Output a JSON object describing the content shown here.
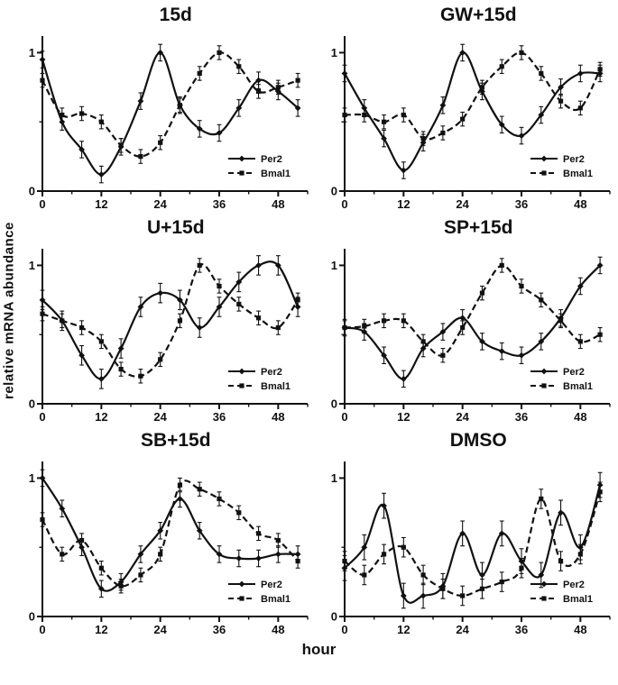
{
  "figure": {
    "ylabel": "relative mRNA abundance",
    "xlabel": "hour",
    "ink_color": "#111111",
    "background_color": "#ffffff"
  },
  "chart_data": [
    {
      "type": "line",
      "title": "15d",
      "x": [
        0,
        4,
        8,
        12,
        16,
        20,
        24,
        28,
        32,
        36,
        40,
        44,
        48,
        52
      ],
      "xticks": [
        0,
        12,
        24,
        36,
        48
      ],
      "yticks": [
        0,
        1
      ],
      "xlim": [
        0,
        54
      ],
      "ylim": [
        0,
        1.12
      ],
      "legend_position": "bottom-right",
      "series": [
        {
          "name": "Per2",
          "line": "solid",
          "marker": "diamond",
          "err": 0.06,
          "values": [
            0.95,
            0.5,
            0.3,
            0.12,
            0.32,
            0.65,
            1.0,
            0.62,
            0.45,
            0.42,
            0.6,
            0.8,
            0.72,
            0.6
          ]
        },
        {
          "name": "Bmal1",
          "line": "dashed",
          "marker": "square",
          "err": 0.05,
          "values": [
            0.8,
            0.55,
            0.56,
            0.5,
            0.33,
            0.25,
            0.35,
            0.62,
            0.85,
            1.0,
            0.9,
            0.72,
            0.75,
            0.8
          ]
        }
      ]
    },
    {
      "type": "line",
      "title": "GW+15d",
      "x": [
        0,
        4,
        8,
        12,
        16,
        20,
        24,
        28,
        32,
        36,
        40,
        44,
        48,
        52
      ],
      "xticks": [
        0,
        12,
        24,
        36,
        48
      ],
      "yticks": [
        0,
        1
      ],
      "xlim": [
        0,
        54
      ],
      "ylim": [
        0,
        1.12
      ],
      "legend_position": "bottom-right",
      "series": [
        {
          "name": "Per2",
          "line": "solid",
          "marker": "diamond",
          "err": 0.06,
          "values": [
            0.85,
            0.6,
            0.38,
            0.15,
            0.35,
            0.62,
            1.0,
            0.72,
            0.48,
            0.4,
            0.55,
            0.75,
            0.85,
            0.85
          ]
        },
        {
          "name": "Bmal1",
          "line": "dashed",
          "marker": "square",
          "err": 0.05,
          "values": [
            0.55,
            0.55,
            0.5,
            0.55,
            0.38,
            0.42,
            0.52,
            0.75,
            0.9,
            1.0,
            0.85,
            0.65,
            0.6,
            0.88
          ]
        }
      ]
    },
    {
      "type": "line",
      "title": "U+15d",
      "x": [
        0,
        4,
        8,
        12,
        16,
        20,
        24,
        28,
        32,
        36,
        40,
        44,
        48,
        52
      ],
      "xticks": [
        0,
        12,
        24,
        36,
        48
      ],
      "yticks": [
        0,
        1
      ],
      "xlim": [
        0,
        54
      ],
      "ylim": [
        0,
        1.12
      ],
      "legend_position": "bottom-right",
      "series": [
        {
          "name": "Per2",
          "line": "solid",
          "marker": "diamond",
          "err": 0.07,
          "values": [
            0.75,
            0.6,
            0.35,
            0.18,
            0.4,
            0.7,
            0.8,
            0.75,
            0.55,
            0.7,
            0.88,
            1.0,
            1.0,
            0.7
          ]
        },
        {
          "name": "Bmal1",
          "line": "dashed",
          "marker": "square",
          "err": 0.05,
          "values": [
            0.65,
            0.6,
            0.55,
            0.45,
            0.25,
            0.2,
            0.32,
            0.6,
            1.0,
            0.85,
            0.72,
            0.62,
            0.55,
            0.75
          ]
        }
      ]
    },
    {
      "type": "line",
      "title": "SP+15d",
      "x": [
        0,
        4,
        8,
        12,
        16,
        20,
        24,
        28,
        32,
        36,
        40,
        44,
        48,
        52
      ],
      "xticks": [
        0,
        12,
        24,
        36,
        48
      ],
      "yticks": [
        0,
        1
      ],
      "xlim": [
        0,
        54
      ],
      "ylim": [
        0,
        1.12
      ],
      "legend_position": "bottom-right",
      "series": [
        {
          "name": "Per2",
          "line": "solid",
          "marker": "diamond",
          "err": 0.06,
          "values": [
            0.55,
            0.52,
            0.35,
            0.18,
            0.4,
            0.52,
            0.62,
            0.45,
            0.38,
            0.35,
            0.45,
            0.62,
            0.85,
            1.0
          ]
        },
        {
          "name": "Bmal1",
          "line": "dashed",
          "marker": "square",
          "err": 0.05,
          "values": [
            0.55,
            0.56,
            0.6,
            0.6,
            0.45,
            0.35,
            0.55,
            0.8,
            1.0,
            0.85,
            0.75,
            0.6,
            0.45,
            0.5
          ]
        }
      ]
    },
    {
      "type": "line",
      "title": "SB+15d",
      "x": [
        0,
        4,
        8,
        12,
        16,
        20,
        24,
        28,
        32,
        36,
        40,
        44,
        48,
        52
      ],
      "xticks": [
        0,
        12,
        24,
        36,
        48
      ],
      "yticks": [
        0,
        1
      ],
      "xlim": [
        0,
        54
      ],
      "ylim": [
        0,
        1.12
      ],
      "legend_position": "bottom-right",
      "series": [
        {
          "name": "Per2",
          "line": "solid",
          "marker": "diamond",
          "err": 0.06,
          "values": [
            1.0,
            0.78,
            0.5,
            0.2,
            0.25,
            0.45,
            0.62,
            0.85,
            0.62,
            0.45,
            0.42,
            0.42,
            0.45,
            0.45
          ]
        },
        {
          "name": "Bmal1",
          "line": "dashed",
          "marker": "square",
          "err": 0.05,
          "values": [
            0.7,
            0.45,
            0.55,
            0.35,
            0.22,
            0.3,
            0.45,
            0.95,
            0.92,
            0.85,
            0.75,
            0.6,
            0.55,
            0.4
          ]
        }
      ]
    },
    {
      "type": "line",
      "title": "DMSO",
      "x": [
        0,
        4,
        8,
        12,
        16,
        20,
        24,
        28,
        32,
        36,
        40,
        44,
        48,
        52
      ],
      "xticks": [
        0,
        12,
        24,
        36,
        48
      ],
      "yticks": [
        0,
        1
      ],
      "xlim": [
        0,
        54
      ],
      "ylim": [
        0,
        1.12
      ],
      "legend_position": "bottom-right",
      "series": [
        {
          "name": "Per2",
          "line": "solid",
          "marker": "diamond",
          "err": 0.09,
          "values": [
            0.35,
            0.5,
            0.8,
            0.15,
            0.15,
            0.22,
            0.6,
            0.3,
            0.6,
            0.4,
            0.3,
            0.75,
            0.5,
            0.95
          ]
        },
        {
          "name": "Bmal1",
          "line": "dashed",
          "marker": "square",
          "err": 0.07,
          "values": [
            0.4,
            0.3,
            0.45,
            0.5,
            0.3,
            0.2,
            0.15,
            0.2,
            0.25,
            0.35,
            0.85,
            0.4,
            0.45,
            0.9
          ]
        }
      ]
    }
  ]
}
